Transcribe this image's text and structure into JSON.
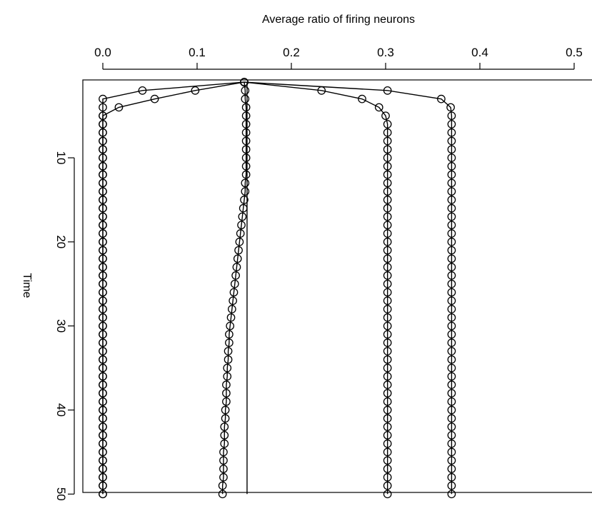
{
  "chart_data": {
    "type": "line",
    "xlabel": "Average ratio of firing neurons",
    "ylabel": "Time",
    "xlim": [
      0.0,
      0.52
    ],
    "ylim": [
      1,
      50
    ],
    "x_axis_position": "top",
    "y_axis_reversed": true,
    "x_ticks": [
      0.0,
      0.1,
      0.2,
      0.3,
      0.4,
      0.5
    ],
    "x_tick_labels": [
      "0.0",
      "0.1",
      "0.2",
      "0.3",
      "0.4",
      "0.5"
    ],
    "y_ticks": [
      10,
      20,
      30,
      40,
      50
    ],
    "y_tick_labels": [
      "10",
      "20",
      "30",
      "40",
      "50"
    ],
    "marker": "open-circle",
    "series_color": "#000000",
    "series": [
      {
        "values": [
          [
            0.15,
            1
          ],
          [
            0.098,
            2
          ],
          [
            0.055,
            3
          ],
          [
            0.017,
            4
          ],
          [
            0.0,
            5
          ],
          [
            0.0,
            6
          ],
          [
            0.0,
            7
          ],
          [
            0.0,
            8
          ],
          [
            0.0,
            9
          ],
          [
            0.0,
            10
          ],
          [
            0.0,
            11
          ],
          [
            0.0,
            12
          ],
          [
            0.0,
            13
          ],
          [
            0.0,
            14
          ],
          [
            0.0,
            15
          ],
          [
            0.0,
            16
          ],
          [
            0.0,
            17
          ],
          [
            0.0,
            18
          ],
          [
            0.0,
            19
          ],
          [
            0.0,
            20
          ],
          [
            0.0,
            21
          ],
          [
            0.0,
            22
          ],
          [
            0.0,
            23
          ],
          [
            0.0,
            24
          ],
          [
            0.0,
            25
          ],
          [
            0.0,
            26
          ],
          [
            0.0,
            27
          ],
          [
            0.0,
            28
          ],
          [
            0.0,
            29
          ],
          [
            0.0,
            30
          ],
          [
            0.0,
            31
          ],
          [
            0.0,
            32
          ],
          [
            0.0,
            33
          ],
          [
            0.0,
            34
          ],
          [
            0.0,
            35
          ],
          [
            0.0,
            36
          ],
          [
            0.0,
            37
          ],
          [
            0.0,
            38
          ],
          [
            0.0,
            39
          ],
          [
            0.0,
            40
          ],
          [
            0.0,
            41
          ],
          [
            0.0,
            42
          ],
          [
            0.0,
            43
          ],
          [
            0.0,
            44
          ],
          [
            0.0,
            45
          ],
          [
            0.0,
            46
          ],
          [
            0.0,
            47
          ],
          [
            0.0,
            48
          ],
          [
            0.0,
            49
          ],
          [
            0.0,
            50
          ]
        ]
      },
      {
        "values": [
          [
            0.15,
            1
          ],
          [
            0.042,
            2
          ],
          [
            0.0,
            3
          ],
          [
            0.0,
            4
          ],
          [
            0.0,
            5
          ],
          [
            0.0,
            6
          ],
          [
            0.0,
            7
          ],
          [
            0.0,
            8
          ],
          [
            0.0,
            9
          ],
          [
            0.0,
            10
          ],
          [
            0.0,
            11
          ],
          [
            0.0,
            12
          ],
          [
            0.0,
            13
          ],
          [
            0.0,
            14
          ],
          [
            0.0,
            15
          ],
          [
            0.0,
            16
          ],
          [
            0.0,
            17
          ],
          [
            0.0,
            18
          ],
          [
            0.0,
            19
          ],
          [
            0.0,
            20
          ],
          [
            0.0,
            21
          ],
          [
            0.0,
            22
          ],
          [
            0.0,
            23
          ],
          [
            0.0,
            24
          ],
          [
            0.0,
            25
          ],
          [
            0.0,
            26
          ],
          [
            0.0,
            27
          ],
          [
            0.0,
            28
          ],
          [
            0.0,
            29
          ],
          [
            0.0,
            30
          ],
          [
            0.0,
            31
          ],
          [
            0.0,
            32
          ],
          [
            0.0,
            33
          ],
          [
            0.0,
            34
          ],
          [
            0.0,
            35
          ],
          [
            0.0,
            36
          ],
          [
            0.0,
            37
          ],
          [
            0.0,
            38
          ],
          [
            0.0,
            39
          ],
          [
            0.0,
            40
          ],
          [
            0.0,
            41
          ],
          [
            0.0,
            42
          ],
          [
            0.0,
            43
          ],
          [
            0.0,
            44
          ],
          [
            0.0,
            45
          ],
          [
            0.0,
            46
          ],
          [
            0.0,
            47
          ],
          [
            0.0,
            48
          ],
          [
            0.0,
            49
          ],
          [
            0.0,
            50
          ]
        ]
      },
      {
        "values": [
          [
            0.15,
            1
          ],
          [
            0.151,
            2
          ],
          [
            0.151,
            3
          ],
          [
            0.152,
            4
          ],
          [
            0.152,
            5
          ],
          [
            0.152,
            6
          ],
          [
            0.152,
            7
          ],
          [
            0.152,
            8
          ],
          [
            0.152,
            9
          ],
          [
            0.152,
            10
          ],
          [
            0.152,
            11
          ],
          [
            0.152,
            12
          ],
          [
            0.151,
            13
          ],
          [
            0.151,
            14
          ],
          [
            0.15,
            15
          ],
          [
            0.149,
            16
          ],
          [
            0.148,
            17
          ],
          [
            0.147,
            18
          ],
          [
            0.146,
            19
          ],
          [
            0.145,
            20
          ],
          [
            0.144,
            21
          ],
          [
            0.143,
            22
          ],
          [
            0.142,
            23
          ],
          [
            0.141,
            24
          ],
          [
            0.14,
            25
          ],
          [
            0.139,
            26
          ],
          [
            0.138,
            27
          ],
          [
            0.137,
            28
          ],
          [
            0.136,
            29
          ],
          [
            0.135,
            30
          ],
          [
            0.134,
            31
          ],
          [
            0.134,
            32
          ],
          [
            0.133,
            33
          ],
          [
            0.133,
            34
          ],
          [
            0.132,
            35
          ],
          [
            0.132,
            36
          ],
          [
            0.131,
            37
          ],
          [
            0.131,
            38
          ],
          [
            0.131,
            39
          ],
          [
            0.13,
            40
          ],
          [
            0.13,
            41
          ],
          [
            0.129,
            42
          ],
          [
            0.129,
            43
          ],
          [
            0.129,
            44
          ],
          [
            0.128,
            45
          ],
          [
            0.128,
            46
          ],
          [
            0.128,
            47
          ],
          [
            0.128,
            48
          ],
          [
            0.127,
            49
          ],
          [
            0.127,
            50
          ]
        ]
      },
      {
        "values": [
          [
            0.15,
            1
          ],
          [
            0.232,
            2
          ],
          [
            0.275,
            3
          ],
          [
            0.293,
            4
          ],
          [
            0.3,
            5
          ],
          [
            0.302,
            6
          ],
          [
            0.302,
            7
          ],
          [
            0.302,
            8
          ],
          [
            0.302,
            9
          ],
          [
            0.302,
            10
          ],
          [
            0.302,
            11
          ],
          [
            0.302,
            12
          ],
          [
            0.302,
            13
          ],
          [
            0.302,
            14
          ],
          [
            0.302,
            15
          ],
          [
            0.302,
            16
          ],
          [
            0.302,
            17
          ],
          [
            0.302,
            18
          ],
          [
            0.302,
            19
          ],
          [
            0.302,
            20
          ],
          [
            0.302,
            21
          ],
          [
            0.302,
            22
          ],
          [
            0.302,
            23
          ],
          [
            0.302,
            24
          ],
          [
            0.302,
            25
          ],
          [
            0.302,
            26
          ],
          [
            0.302,
            27
          ],
          [
            0.302,
            28
          ],
          [
            0.302,
            29
          ],
          [
            0.302,
            30
          ],
          [
            0.302,
            31
          ],
          [
            0.302,
            32
          ],
          [
            0.302,
            33
          ],
          [
            0.302,
            34
          ],
          [
            0.302,
            35
          ],
          [
            0.302,
            36
          ],
          [
            0.302,
            37
          ],
          [
            0.302,
            38
          ],
          [
            0.302,
            39
          ],
          [
            0.302,
            40
          ],
          [
            0.302,
            41
          ],
          [
            0.302,
            42
          ],
          [
            0.302,
            43
          ],
          [
            0.302,
            44
          ],
          [
            0.302,
            45
          ],
          [
            0.302,
            46
          ],
          [
            0.302,
            47
          ],
          [
            0.302,
            48
          ],
          [
            0.302,
            49
          ],
          [
            0.302,
            50
          ]
        ]
      },
      {
        "values": [
          [
            0.15,
            1
          ],
          [
            0.302,
            2
          ],
          [
            0.359,
            3
          ],
          [
            0.369,
            4
          ],
          [
            0.37,
            5
          ],
          [
            0.37,
            6
          ],
          [
            0.37,
            7
          ],
          [
            0.37,
            8
          ],
          [
            0.37,
            9
          ],
          [
            0.37,
            10
          ],
          [
            0.37,
            11
          ],
          [
            0.37,
            12
          ],
          [
            0.37,
            13
          ],
          [
            0.37,
            14
          ],
          [
            0.37,
            15
          ],
          [
            0.37,
            16
          ],
          [
            0.37,
            17
          ],
          [
            0.37,
            18
          ],
          [
            0.37,
            19
          ],
          [
            0.37,
            20
          ],
          [
            0.37,
            21
          ],
          [
            0.37,
            22
          ],
          [
            0.37,
            23
          ],
          [
            0.37,
            24
          ],
          [
            0.37,
            25
          ],
          [
            0.37,
            26
          ],
          [
            0.37,
            27
          ],
          [
            0.37,
            28
          ],
          [
            0.37,
            29
          ],
          [
            0.37,
            30
          ],
          [
            0.37,
            31
          ],
          [
            0.37,
            32
          ],
          [
            0.37,
            33
          ],
          [
            0.37,
            34
          ],
          [
            0.37,
            35
          ],
          [
            0.37,
            36
          ],
          [
            0.37,
            37
          ],
          [
            0.37,
            38
          ],
          [
            0.37,
            39
          ],
          [
            0.37,
            40
          ],
          [
            0.37,
            41
          ],
          [
            0.37,
            42
          ],
          [
            0.37,
            43
          ],
          [
            0.37,
            44
          ],
          [
            0.37,
            45
          ],
          [
            0.37,
            46
          ],
          [
            0.37,
            47
          ],
          [
            0.37,
            48
          ],
          [
            0.37,
            49
          ],
          [
            0.37,
            50
          ]
        ]
      },
      {
        "values": [
          [
            0.153,
            1
          ],
          [
            0.153,
            50
          ]
        ]
      }
    ]
  }
}
